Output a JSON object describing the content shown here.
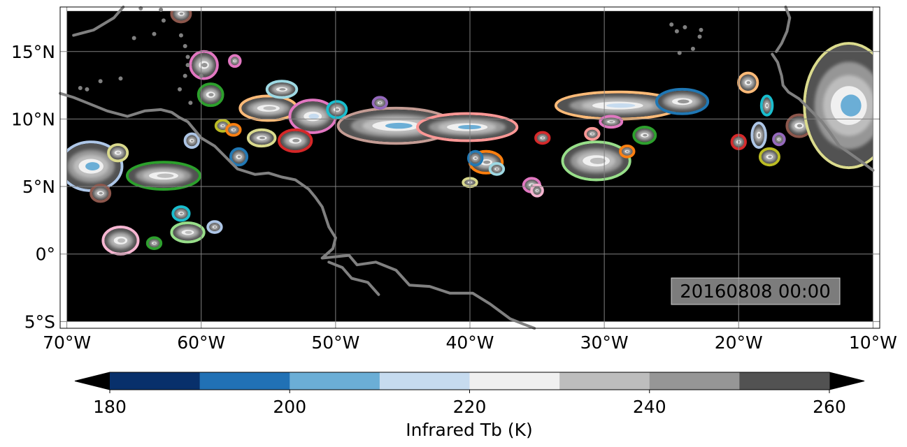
{
  "map": {
    "extent": {
      "lon_min": -70.5,
      "lon_max": -9.5,
      "lat_min": -5.5,
      "lat_max": 18.3
    },
    "data_extent": {
      "lon_min": -70,
      "lon_max": -10,
      "lat_min": -5,
      "lat_max": 18
    },
    "background_color": "#000000",
    "coastline_color": "#808080",
    "grid_color": "#808080",
    "x_ticks": [
      {
        "lon": -70,
        "label": "70°W"
      },
      {
        "lon": -60,
        "label": "60°W"
      },
      {
        "lon": -50,
        "label": "50°W"
      },
      {
        "lon": -40,
        "label": "40°W"
      },
      {
        "lon": -30,
        "label": "30°W"
      },
      {
        "lon": -20,
        "label": "20°W"
      },
      {
        "lon": -10,
        "label": "10°W"
      }
    ],
    "y_ticks": [
      {
        "lat": 15,
        "label": "15°N"
      },
      {
        "lat": 10,
        "label": "10°N"
      },
      {
        "lat": 5,
        "label": "5°N"
      },
      {
        "lat": 0,
        "label": "0°"
      },
      {
        "lat": -5,
        "label": "5°S"
      }
    ],
    "timestamp": "20160808 00:00"
  },
  "colorbar": {
    "title": "Infrared Tb (K)",
    "bounds": [
      180,
      190,
      200,
      210,
      220,
      230,
      240,
      250,
      260
    ],
    "colors": [
      "#08306b",
      "#2171b5",
      "#6baed6",
      "#c6dbef",
      "#f0f0f0",
      "#bdbdbd",
      "#969696",
      "#525252"
    ],
    "under_color": "#000000",
    "over_color": "#000000",
    "tick_labels": [
      {
        "value": 180,
        "label": "180"
      },
      {
        "value": 200,
        "label": "200"
      },
      {
        "value": 220,
        "label": "220"
      },
      {
        "value": 240,
        "label": "240"
      },
      {
        "value": 260,
        "label": "260"
      }
    ]
  },
  "cloud_systems": [
    {
      "lon": -68.2,
      "lat": 6.5,
      "rlon": 2.2,
      "rlat": 1.7,
      "edge": "#aec7e8",
      "core": "#6baed6"
    },
    {
      "lon": -66.2,
      "lat": 7.5,
      "rlon": 0.6,
      "rlat": 0.5,
      "edge": "#dbdb8d",
      "core": "#bdbdbd"
    },
    {
      "lon": -67.5,
      "lat": 4.5,
      "rlon": 0.6,
      "rlat": 0.5,
      "edge": "#8c564b",
      "core": "#969696"
    },
    {
      "lon": -62.8,
      "lat": 5.8,
      "rlon": 2.6,
      "rlat": 0.9,
      "edge": "#2ca02c",
      "core": "#bdbdbd"
    },
    {
      "lon": -66.0,
      "lat": 1.0,
      "rlon": 1.2,
      "rlat": 0.9,
      "edge": "#f7b6d2",
      "core": "#bdbdbd"
    },
    {
      "lon": -61.0,
      "lat": 1.6,
      "rlon": 1.1,
      "rlat": 0.6,
      "edge": "#98df8a",
      "core": "#bdbdbd"
    },
    {
      "lon": -61.5,
      "lat": 3.0,
      "rlon": 0.5,
      "rlat": 0.4,
      "edge": "#17becf",
      "core": "#969696"
    },
    {
      "lon": -63.5,
      "lat": 0.8,
      "rlon": 0.4,
      "rlat": 0.3,
      "edge": "#2ca02c",
      "core": "#969696"
    },
    {
      "lon": -59.0,
      "lat": 2.0,
      "rlon": 0.4,
      "rlat": 0.3,
      "edge": "#aec7e8",
      "core": "#969696"
    },
    {
      "lon": -60.7,
      "lat": 8.4,
      "rlon": 0.4,
      "rlat": 0.4,
      "edge": "#aec7e8",
      "core": "#969696"
    },
    {
      "lon": -59.8,
      "lat": 14.0,
      "rlon": 0.9,
      "rlat": 0.9,
      "edge": "#e377c2",
      "core": "#969696"
    },
    {
      "lon": -57.5,
      "lat": 14.3,
      "rlon": 0.3,
      "rlat": 0.3,
      "edge": "#e377c2",
      "core": "#969696"
    },
    {
      "lon": -59.3,
      "lat": 11.8,
      "rlon": 0.8,
      "rlat": 0.7,
      "edge": "#2ca02c",
      "core": "#969696"
    },
    {
      "lon": -61.5,
      "lat": 17.8,
      "rlon": 0.6,
      "rlat": 0.5,
      "edge": "#8c564b",
      "core": "#969696"
    },
    {
      "lon": -55.0,
      "lat": 10.8,
      "rlon": 2.0,
      "rlat": 0.8,
      "edge": "#ffbb78",
      "core": "#bdbdbd"
    },
    {
      "lon": -54.0,
      "lat": 12.2,
      "rlon": 1.0,
      "rlat": 0.5,
      "edge": "#9edae5",
      "core": "#969696"
    },
    {
      "lon": -51.7,
      "lat": 10.2,
      "rlon": 1.6,
      "rlat": 1.1,
      "edge": "#e377c2",
      "core": "#c6dbef"
    },
    {
      "lon": -53.0,
      "lat": 8.4,
      "rlon": 1.1,
      "rlat": 0.7,
      "edge": "#d62728",
      "core": "#969696"
    },
    {
      "lon": -55.5,
      "lat": 8.6,
      "rlon": 0.9,
      "rlat": 0.5,
      "edge": "#dbdb8d",
      "core": "#969696"
    },
    {
      "lon": -57.2,
      "lat": 7.2,
      "rlon": 0.5,
      "rlat": 0.5,
      "edge": "#1f77b4",
      "core": "#969696"
    },
    {
      "lon": -58.4,
      "lat": 9.5,
      "rlon": 0.4,
      "rlat": 0.3,
      "edge": "#bcbd22",
      "core": "#969696"
    },
    {
      "lon": -57.6,
      "lat": 9.2,
      "rlon": 0.4,
      "rlat": 0.3,
      "edge": "#ff7f0e",
      "core": "#969696"
    },
    {
      "lon": -49.9,
      "lat": 10.7,
      "rlon": 0.6,
      "rlat": 0.5,
      "edge": "#17becf",
      "core": "#969696"
    },
    {
      "lon": -45.5,
      "lat": 9.5,
      "rlon": 4.2,
      "rlat": 1.2,
      "edge": "#c49c94",
      "core": "#6baed6"
    },
    {
      "lon": -40.2,
      "lat": 9.4,
      "rlon": 3.6,
      "rlat": 0.9,
      "edge": "#ff9896",
      "core": "#6baed6"
    },
    {
      "lon": -46.7,
      "lat": 11.2,
      "rlon": 0.4,
      "rlat": 0.3,
      "edge": "#9467bd",
      "core": "#969696"
    },
    {
      "lon": -38.8,
      "lat": 6.8,
      "rlon": 1.1,
      "rlat": 0.7,
      "edge": "#ff7f0e",
      "core": "#969696"
    },
    {
      "lon": -39.6,
      "lat": 7.1,
      "rlon": 0.4,
      "rlat": 0.4,
      "edge": "#1f77b4",
      "core": "#969696"
    },
    {
      "lon": -38.0,
      "lat": 6.3,
      "rlon": 0.4,
      "rlat": 0.3,
      "edge": "#9edae5",
      "core": "#969696"
    },
    {
      "lon": -40.0,
      "lat": 5.3,
      "rlon": 0.4,
      "rlat": 0.2,
      "edge": "#dbdb8d",
      "core": "#969696"
    },
    {
      "lon": -35.4,
      "lat": 5.1,
      "rlon": 0.5,
      "rlat": 0.4,
      "edge": "#e377c2",
      "core": "#969696"
    },
    {
      "lon": -35.0,
      "lat": 4.7,
      "rlon": 0.3,
      "rlat": 0.3,
      "edge": "#f7b6d2",
      "core": "#969696"
    },
    {
      "lon": -34.6,
      "lat": 8.6,
      "rlon": 0.4,
      "rlat": 0.3,
      "edge": "#d62728",
      "core": "#969696"
    },
    {
      "lon": -29.0,
      "lat": 11.0,
      "rlon": 4.5,
      "rlat": 0.9,
      "edge": "#ffbb78",
      "core": "#c6dbef"
    },
    {
      "lon": -24.2,
      "lat": 11.3,
      "rlon": 1.8,
      "rlat": 0.8,
      "edge": "#1f77b4",
      "core": "#969696"
    },
    {
      "lon": -30.6,
      "lat": 6.9,
      "rlon": 2.4,
      "rlat": 1.3,
      "edge": "#98df8a",
      "core": "#bdbdbd"
    },
    {
      "lon": -30.9,
      "lat": 8.9,
      "rlon": 0.4,
      "rlat": 0.3,
      "edge": "#ff9896",
      "core": "#969696"
    },
    {
      "lon": -29.5,
      "lat": 9.8,
      "rlon": 0.7,
      "rlat": 0.3,
      "edge": "#e377c2",
      "core": "#969696"
    },
    {
      "lon": -27.0,
      "lat": 8.8,
      "rlon": 0.7,
      "rlat": 0.5,
      "edge": "#2ca02c",
      "core": "#969696"
    },
    {
      "lon": -28.3,
      "lat": 7.6,
      "rlon": 0.4,
      "rlat": 0.3,
      "edge": "#ff7f0e",
      "core": "#969696"
    },
    {
      "lon": -20.0,
      "lat": 8.3,
      "rlon": 0.4,
      "rlat": 0.4,
      "edge": "#d62728",
      "core": "#969696"
    },
    {
      "lon": -19.3,
      "lat": 12.7,
      "rlon": 0.6,
      "rlat": 0.6,
      "edge": "#ffbb78",
      "core": "#969696"
    },
    {
      "lon": -17.9,
      "lat": 11.0,
      "rlon": 0.3,
      "rlat": 0.6,
      "edge": "#17becf",
      "core": "#969696"
    },
    {
      "lon": -18.5,
      "lat": 8.8,
      "rlon": 0.4,
      "rlat": 0.8,
      "edge": "#aec7e8",
      "core": "#969696"
    },
    {
      "lon": -17.0,
      "lat": 8.5,
      "rlon": 0.3,
      "rlat": 0.3,
      "edge": "#9467bd",
      "core": "#969696"
    },
    {
      "lon": -17.7,
      "lat": 7.2,
      "rlon": 0.6,
      "rlat": 0.5,
      "edge": "#bcbd22",
      "core": "#969696"
    },
    {
      "lon": -15.5,
      "lat": 9.5,
      "rlon": 0.8,
      "rlat": 0.7,
      "edge": "#8c564b",
      "core": "#969696"
    },
    {
      "lon": -11.8,
      "lat": 11.0,
      "rlon": 3.2,
      "rlat": 4.5,
      "edge": "#dbdb8d",
      "core": "#6baed6"
    }
  ],
  "coastlines": [
    [
      [
        -69.5,
        16.2
      ],
      [
        -68.0,
        16.6
      ],
      [
        -66.5,
        17.5
      ],
      [
        -65.8,
        18.3
      ]
    ],
    [
      [
        -70.5,
        11.9
      ],
      [
        -69.5,
        11.6
      ],
      [
        -68.5,
        11.2
      ],
      [
        -67.0,
        10.6
      ],
      [
        -65.5,
        10.2
      ],
      [
        -64.2,
        10.6
      ],
      [
        -63.0,
        10.7
      ],
      [
        -62.2,
        10.5
      ],
      [
        -61.6,
        10.1
      ],
      [
        -61.0,
        9.8
      ],
      [
        -60.0,
        8.6
      ],
      [
        -59.0,
        8.0
      ],
      [
        -58.0,
        7.0
      ],
      [
        -57.3,
        6.3
      ],
      [
        -56.0,
        5.9
      ],
      [
        -55.0,
        6.0
      ],
      [
        -54.0,
        5.7
      ],
      [
        -53.0,
        5.5
      ],
      [
        -52.0,
        4.8
      ],
      [
        -51.5,
        4.2
      ],
      [
        -51.0,
        3.5
      ],
      [
        -50.5,
        2.0
      ],
      [
        -50.0,
        1.2
      ],
      [
        -50.2,
        0.4
      ],
      [
        -51.0,
        -0.3
      ],
      [
        -49.0,
        -0.1
      ],
      [
        -48.4,
        -0.8
      ],
      [
        -47.0,
        -0.6
      ],
      [
        -45.5,
        -1.2
      ],
      [
        -44.5,
        -2.3
      ],
      [
        -43.0,
        -2.4
      ],
      [
        -41.5,
        -2.9
      ],
      [
        -39.8,
        -2.9
      ],
      [
        -38.5,
        -3.7
      ],
      [
        -37.0,
        -4.8
      ],
      [
        -36.0,
        -5.2
      ],
      [
        -35.2,
        -5.5
      ]
    ],
    [
      [
        -50.5,
        -0.6
      ],
      [
        -49.5,
        -1.0
      ],
      [
        -48.8,
        -1.8
      ],
      [
        -47.6,
        -2.1
      ],
      [
        -46.8,
        -3.0
      ]
    ],
    [
      [
        -17.5,
        14.8
      ],
      [
        -17.1,
        14.2
      ],
      [
        -16.8,
        13.2
      ],
      [
        -16.7,
        12.5
      ],
      [
        -16.3,
        12.0
      ],
      [
        -15.5,
        11.5
      ],
      [
        -14.8,
        10.8
      ],
      [
        -13.8,
        9.8
      ],
      [
        -13.2,
        9.0
      ],
      [
        -12.5,
        8.0
      ],
      [
        -11.5,
        7.3
      ],
      [
        -10.8,
        6.8
      ],
      [
        -10.0,
        6.2
      ]
    ],
    [
      [
        -16.5,
        18.3
      ],
      [
        -16.2,
        17.5
      ],
      [
        -16.4,
        16.5
      ],
      [
        -16.8,
        15.6
      ],
      [
        -17.2,
        15.0
      ]
    ]
  ],
  "islands": [
    [
      -61.5,
      16.2
    ],
    [
      -61.2,
      15.4
    ],
    [
      -61.0,
      14.6
    ],
    [
      -61.0,
      14.0
    ],
    [
      -61.2,
      13.2
    ],
    [
      -61.6,
      12.2
    ],
    [
      -60.8,
      11.2
    ],
    [
      -60.0,
      13.2
    ],
    [
      -62.8,
      17.3
    ],
    [
      -63.0,
      18.1
    ],
    [
      -64.5,
      18.2
    ],
    [
      -63.5,
      16.3
    ],
    [
      -65.0,
      16.0
    ],
    [
      -68.5,
      12.2
    ],
    [
      -69.0,
      12.3
    ],
    [
      -67.5,
      12.8
    ],
    [
      -66.0,
      13.0
    ],
    [
      -24.0,
      16.8
    ],
    [
      -23.4,
      15.2
    ],
    [
      -22.9,
      16.1
    ],
    [
      -25.0,
      17.0
    ],
    [
      -24.4,
      14.9
    ],
    [
      -22.8,
      16.6
    ],
    [
      -24.6,
      16.5
    ]
  ]
}
